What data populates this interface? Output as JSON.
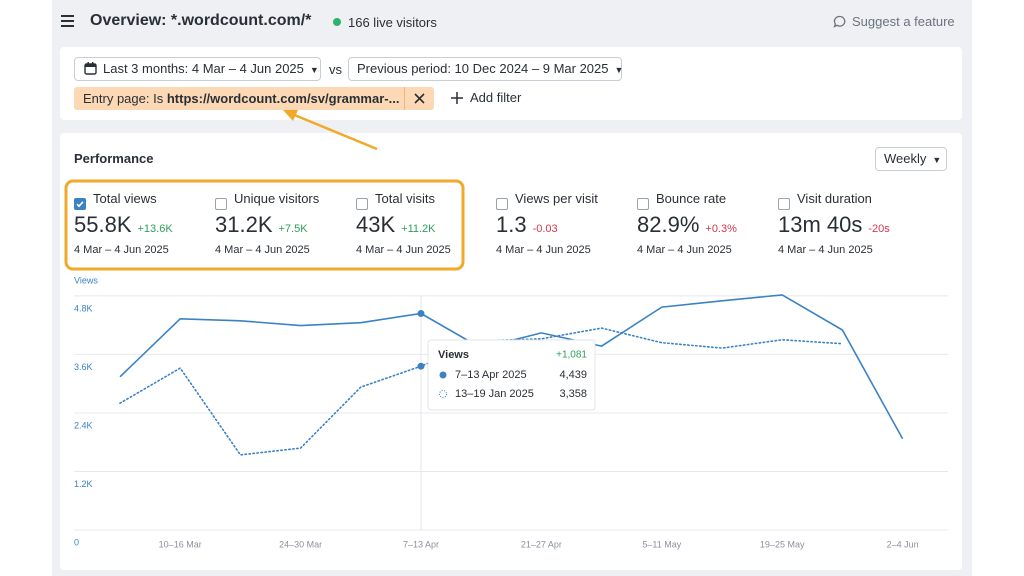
{
  "header": {
    "title": "Overview: *.wordcount.com/*",
    "live_visitors": "166 live visitors",
    "suggest": "Suggest a feature"
  },
  "filters": {
    "period": "Last 3 months: 4 Mar – 4 Jun 2025",
    "vs": "vs",
    "comparison": "Previous period: 10 Dec 2024 – 9 Mar 2025",
    "entry_filter_prefix": "Entry page: Is",
    "entry_filter_value": "https://wordcount.com/sv/grammar-...",
    "add_filter": "Add filter"
  },
  "performance": {
    "title": "Performance",
    "interval": "Weekly",
    "metrics": [
      {
        "label": "Total views",
        "value": "55.8K",
        "delta": "+13.6K",
        "delta_color": "#2e9e5b",
        "range": "4 Mar – 4 Jun 2025",
        "checked": true
      },
      {
        "label": "Unique visitors",
        "value": "31.2K",
        "delta": "+7.5K",
        "delta_color": "#2e9e5b",
        "range": "4 Mar – 4 Jun 2025",
        "checked": false
      },
      {
        "label": "Total visits",
        "value": "43K",
        "delta": "+11.2K",
        "delta_color": "#2e9e5b",
        "range": "4 Mar – 4 Jun 2025",
        "checked": false
      },
      {
        "label": "Views per visit",
        "value": "1.3",
        "delta": "-0.03",
        "delta_color": "#d6374b",
        "range": "4 Mar – 4 Jun 2025",
        "checked": false
      },
      {
        "label": "Bounce rate",
        "value": "82.9%",
        "delta": "+0.3%",
        "delta_color": "#d6374b",
        "range": "4 Mar – 4 Jun 2025",
        "checked": false
      },
      {
        "label": "Visit duration",
        "value": "13m 40s",
        "delta": "-20s",
        "delta_color": "#d6374b",
        "range": "4 Mar – 4 Jun 2025",
        "checked": false
      }
    ]
  },
  "chart": {
    "type": "line",
    "y_label": "Views",
    "categories": [
      null,
      "10–16 Mar",
      null,
      "24–30 Mar",
      null,
      "7–13 Apr",
      null,
      "21–27 Apr",
      null,
      "5–11 May",
      null,
      "19–25 May",
      null,
      "2–4 Jun"
    ],
    "series": [
      {
        "color": "#3b82c4",
        "line_style": "solid",
        "values": [
          3140,
          4330,
          4290,
          4190,
          4250,
          4439,
          3730,
          4040,
          3770,
          4570,
          4700,
          4820,
          4100,
          1870
        ]
      },
      {
        "color": "#3b82c4",
        "line_style": "dotted",
        "values": [
          2600,
          3320,
          1540,
          1680,
          2930,
          3358,
          3880,
          3920,
          4140,
          3840,
          3730,
          3900,
          3820,
          null
        ]
      }
    ],
    "ylim": [
      0,
      4900
    ],
    "yticks": [
      0,
      {
        "value": 1200,
        "label": "1.2K"
      },
      {
        "value": 2400,
        "label": "2.4K"
      },
      {
        "value": 3600,
        "label": "3.6K"
      },
      {
        "value": 4800,
        "label": "4.8K"
      }
    ],
    "grid": true,
    "tooltip": {
      "title": "Views",
      "delta": "+1,081",
      "rows": [
        {
          "label": "7–13 Apr 2025",
          "value": "4,439"
        },
        {
          "label": "13–19 Jan 2025",
          "value": "3,358"
        }
      ]
    }
  }
}
